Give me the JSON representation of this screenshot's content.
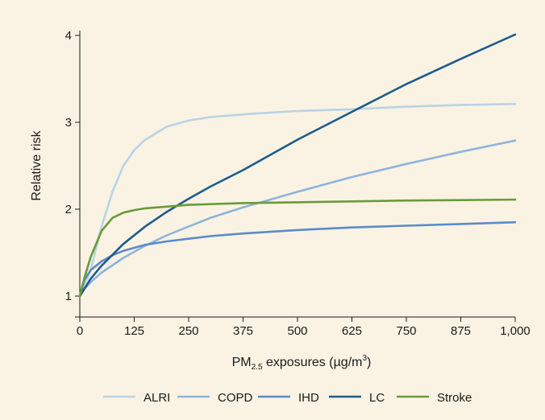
{
  "chart_data": {
    "type": "line",
    "title": "",
    "ylabel": "Relative risk",
    "xlabel": {
      "prefix": "PM",
      "sub": "2.5",
      "suffix": " exposures  (µg/m",
      "sup": "3",
      "end": ")"
    },
    "xlim": [
      0,
      1000
    ],
    "ylim": [
      1,
      4
    ],
    "x_ticks": [
      {
        "value": 0,
        "label": "0"
      },
      {
        "value": 125,
        "label": "125"
      },
      {
        "value": 250,
        "label": "250"
      },
      {
        "value": 375,
        "label": "375"
      },
      {
        "value": 500,
        "label": "500"
      },
      {
        "value": 625,
        "label": "625"
      },
      {
        "value": 750,
        "label": "750"
      },
      {
        "value": 875,
        "label": "875"
      },
      {
        "value": 1000,
        "label": "1,000"
      }
    ],
    "y_ticks": [
      {
        "value": 1,
        "label": "1"
      },
      {
        "value": 2,
        "label": "2"
      },
      {
        "value": 3,
        "label": "3"
      },
      {
        "value": 4,
        "label": "4"
      }
    ],
    "grid": false,
    "legend_position": "bottom",
    "series": [
      {
        "name": "ALRI",
        "color": "#b9d3e6",
        "x": [
          0,
          25,
          50,
          75,
          100,
          125,
          150,
          200,
          250,
          300,
          400,
          500,
          625,
          750,
          875,
          1000
        ],
        "y": [
          1.0,
          1.3,
          1.8,
          2.2,
          2.5,
          2.68,
          2.8,
          2.95,
          3.02,
          3.06,
          3.1,
          3.13,
          3.15,
          3.18,
          3.2,
          3.21
        ]
      },
      {
        "name": "COPD",
        "color": "#8eb4dd",
        "x": [
          0,
          10,
          25,
          50,
          100,
          150,
          200,
          250,
          300,
          375,
          500,
          625,
          750,
          875,
          1000
        ],
        "y": [
          1.0,
          1.08,
          1.16,
          1.27,
          1.44,
          1.58,
          1.7,
          1.8,
          1.9,
          2.02,
          2.2,
          2.37,
          2.52,
          2.66,
          2.79
        ]
      },
      {
        "name": "IHD",
        "color": "#5b8bc9",
        "x": [
          0,
          10,
          25,
          50,
          75,
          100,
          150,
          200,
          250,
          300,
          375,
          500,
          625,
          750,
          875,
          1000
        ],
        "y": [
          1.0,
          1.18,
          1.3,
          1.4,
          1.47,
          1.52,
          1.59,
          1.63,
          1.66,
          1.69,
          1.72,
          1.76,
          1.79,
          1.81,
          1.83,
          1.85
        ]
      },
      {
        "name": "LC",
        "color": "#1d5b8c",
        "x": [
          0,
          25,
          50,
          100,
          150,
          200,
          250,
          300,
          375,
          500,
          625,
          750,
          875,
          1000
        ],
        "y": [
          1.0,
          1.2,
          1.35,
          1.6,
          1.8,
          1.97,
          2.12,
          2.26,
          2.45,
          2.8,
          3.12,
          3.44,
          3.73,
          4.01
        ]
      },
      {
        "name": "Stroke",
        "color": "#6a9a3a",
        "x": [
          0,
          10,
          25,
          50,
          75,
          100,
          125,
          150,
          200,
          250,
          375,
          500,
          625,
          750,
          875,
          1000
        ],
        "y": [
          1.0,
          1.2,
          1.45,
          1.75,
          1.9,
          1.96,
          1.99,
          2.01,
          2.03,
          2.05,
          2.07,
          2.08,
          2.09,
          2.1,
          2.105,
          2.11
        ]
      }
    ]
  }
}
